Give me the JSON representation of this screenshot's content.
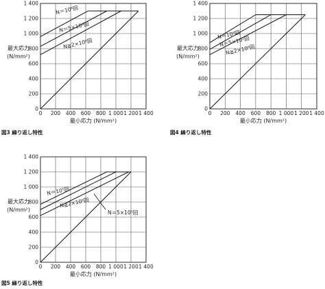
{
  "chart_data": [
    {
      "type": "line",
      "caption": "図3 繰り返し特性",
      "xlabel": "最小応力 (N/mm²)",
      "ylabel": [
        "最大応力",
        "(N/mm²)"
      ],
      "xlim": [
        0,
        1400
      ],
      "ylim": [
        0,
        1400
      ],
      "grid": true,
      "x_ticks": [
        "0",
        "200",
        "400",
        "600",
        "800",
        "1 000",
        "1 200",
        "1 400"
      ],
      "y_ticks": [
        "0",
        "200",
        "400",
        "600",
        "800",
        "1 000",
        "1 200",
        "1 400"
      ],
      "series": [
        {
          "name": "N＝10⁶回",
          "points": [
            [
              0,
              960
            ],
            [
              630,
              1300
            ]
          ]
        },
        {
          "name": "N＝5×10⁵回",
          "points": [
            [
              0,
              830
            ],
            [
              880,
              1300
            ]
          ]
        },
        {
          "name": "N≧2×10⁶回",
          "points": [
            [
              0,
              720
            ],
            [
              1070,
              1300
            ]
          ]
        },
        {
          "points": [
            [
              0,
              0
            ],
            [
              1300,
              1300
            ]
          ]
        },
        {
          "points": [
            [
              630,
              1300
            ],
            [
              1300,
              1300
            ]
          ]
        }
      ],
      "annotations": [
        "N＝10⁶回",
        "N＝5×10⁵回",
        "N≧2×10⁶回"
      ]
    },
    {
      "type": "line",
      "caption": "図4 繰り返し特性",
      "xlabel": "最小応力 (N/mm²)",
      "ylabel": [
        "最大応力",
        "(N/mm²)"
      ],
      "xlim": [
        0,
        1400
      ],
      "ylim": [
        0,
        1400
      ],
      "grid": true,
      "x_ticks": [
        "0",
        "200",
        "400",
        "600",
        "800",
        "1 000",
        "1 200",
        "1 400"
      ],
      "y_ticks": [
        "0",
        "200",
        "400",
        "600",
        "800",
        "1 000",
        "1 200",
        "1 400"
      ],
      "series": [
        {
          "name": "N＝10⁶回",
          "points": [
            [
              0,
              880
            ],
            [
              600,
              1250
            ]
          ]
        },
        {
          "name": "N＝5×10⁵回",
          "points": [
            [
              0,
              790
            ],
            [
              800,
              1250
            ]
          ]
        },
        {
          "name": "N≧2×10⁶回",
          "points": [
            [
              0,
              720
            ],
            [
              1000,
              1250
            ]
          ]
        },
        {
          "points": [
            [
              0,
              0
            ],
            [
              1250,
              1250
            ]
          ]
        },
        {
          "points": [
            [
              600,
              1250
            ],
            [
              1250,
              1250
            ]
          ]
        }
      ],
      "annotations": [
        "N＝10⁶回",
        "N＝5×10⁵回",
        "N≧2×10⁶回"
      ]
    },
    {
      "type": "line",
      "caption": "図5 繰り返し特性",
      "xlabel": "最小応力 (N/mm²)",
      "ylabel": [
        "最大応力",
        "(N/mm²)"
      ],
      "xlim": [
        0,
        1400
      ],
      "ylim": [
        0,
        1400
      ],
      "grid": true,
      "x_ticks": [
        "0",
        "200",
        "400",
        "600",
        "800",
        "1 000",
        "1 200",
        "1 400"
      ],
      "y_ticks": [
        "0",
        "200",
        "400",
        "600",
        "800",
        "1 000",
        "1 200",
        "1 400"
      ],
      "series": [
        {
          "name": "N＝10⁵回",
          "points": [
            [
              0,
              770
            ],
            [
              880,
              1200
            ]
          ]
        },
        {
          "name": "N＝5×10⁵回",
          "points": [
            [
              0,
              700
            ],
            [
              1000,
              1200
            ]
          ]
        },
        {
          "name": "N≧2×10⁶回",
          "points": [
            [
              0,
              620
            ],
            [
              1170,
              1200
            ]
          ]
        },
        {
          "points": [
            [
              0,
              0
            ],
            [
              1200,
              1200
            ]
          ]
        },
        {
          "points": [
            [
              880,
              1200
            ],
            [
              1200,
              1200
            ]
          ]
        }
      ],
      "annotations": [
        "N＝10⁵回",
        "N≧2×10⁶回",
        "N＝5×10⁵回"
      ]
    }
  ]
}
